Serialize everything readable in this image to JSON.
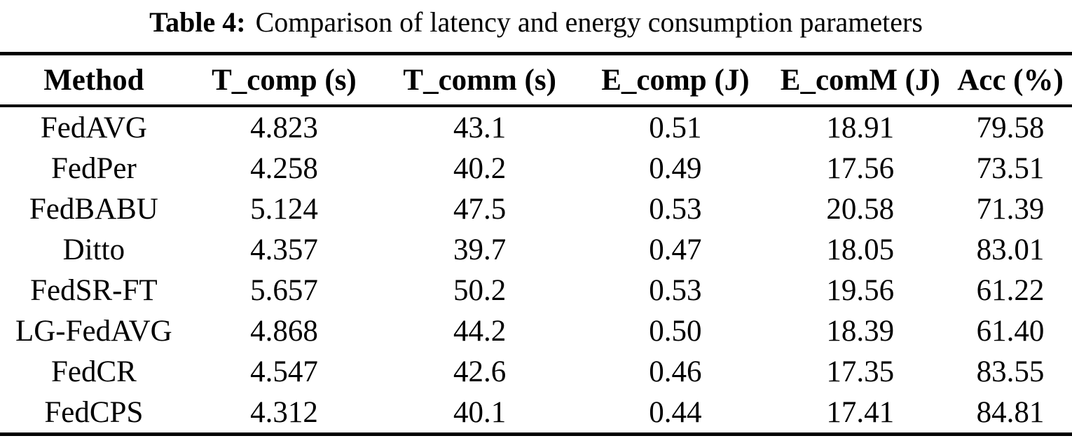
{
  "caption": {
    "label": "Table 4:",
    "text": "Comparison of latency and energy consumption parameters"
  },
  "table": {
    "columns": [
      "Method",
      "T_comp (s)",
      "T_comm (s)",
      "E_comp (J)",
      "E_comM (J)",
      "Acc (%)"
    ],
    "rows": [
      [
        "FedAVG",
        "4.823",
        "43.1",
        "0.51",
        "18.91",
        "79.58"
      ],
      [
        "FedPer",
        "4.258",
        "40.2",
        "0.49",
        "17.56",
        "73.51"
      ],
      [
        "FedBABU",
        "5.124",
        "47.5",
        "0.53",
        "20.58",
        "71.39"
      ],
      [
        "Ditto",
        "4.357",
        "39.7",
        "0.47",
        "18.05",
        "83.01"
      ],
      [
        "FedSR-FT",
        "5.657",
        "50.2",
        "0.53",
        "19.56",
        "61.22"
      ],
      [
        "LG-FedAVG",
        "4.868",
        "44.2",
        "0.50",
        "18.39",
        "61.40"
      ],
      [
        "FedCR",
        "4.547",
        "42.6",
        "0.46",
        "17.35",
        "83.55"
      ],
      [
        "FedCPS",
        "4.312",
        "40.1",
        "0.44",
        "17.41",
        "84.81"
      ]
    ]
  },
  "chart_data": {
    "type": "table",
    "title": "Table 4: Comparison of latency and energy consumption parameters",
    "columns": [
      "Method",
      "T_comp (s)",
      "T_comm (s)",
      "E_comp (J)",
      "E_comM (J)",
      "Acc (%)"
    ],
    "rows": [
      [
        "FedAVG",
        4.823,
        43.1,
        0.51,
        18.91,
        79.58
      ],
      [
        "FedPer",
        4.258,
        40.2,
        0.49,
        17.56,
        73.51
      ],
      [
        "FedBABU",
        5.124,
        47.5,
        0.53,
        20.58,
        71.39
      ],
      [
        "Ditto",
        4.357,
        39.7,
        0.47,
        18.05,
        83.01
      ],
      [
        "FedSR-FT",
        5.657,
        50.2,
        0.53,
        19.56,
        61.22
      ],
      [
        "LG-FedAVG",
        4.868,
        44.2,
        0.5,
        18.39,
        61.4
      ],
      [
        "FedCR",
        4.547,
        42.6,
        0.46,
        17.35,
        83.55
      ],
      [
        "FedCPS",
        4.312,
        40.1,
        0.44,
        17.41,
        84.81
      ]
    ]
  },
  "colors": {
    "text": "#000000",
    "background": "#ffffff",
    "rule": "#000000"
  }
}
